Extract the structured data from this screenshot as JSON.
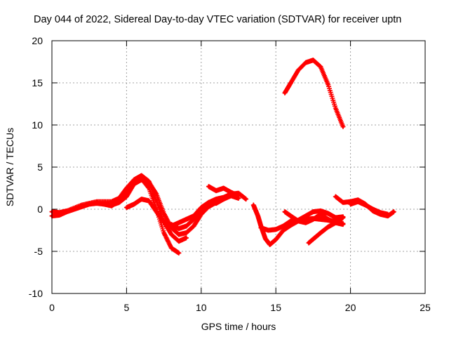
{
  "chart_data": {
    "type": "scatter",
    "title": "Day 044 of 2022, Sidereal Day-to-day VTEC variation (SDTVAR) for receiver uptn",
    "xlabel": "GPS time / hours",
    "ylabel": "SDTVAR / TECUs",
    "xlim": [
      0,
      25
    ],
    "ylim": [
      -10,
      20
    ],
    "xticks": [
      0,
      5,
      10,
      15,
      20,
      25
    ],
    "yticks": [
      -10,
      -5,
      0,
      5,
      10,
      15,
      20
    ],
    "xtick_labels": [
      "0",
      "5",
      "10",
      "15",
      "20",
      "25"
    ],
    "ytick_labels": [
      "-10",
      "-5",
      "0",
      "5",
      "10",
      "15",
      "20"
    ],
    "grid": true,
    "marker": "+",
    "color": "#ff0000",
    "series": [
      {
        "name": "track-1",
        "x": [
          0.0,
          0.5,
          1.0,
          1.5,
          2.0,
          2.5,
          3.0,
          3.5,
          4.0,
          4.5,
          5.0,
          5.5,
          6.0,
          6.5,
          7.0,
          7.5,
          8.0,
          8.5
        ],
        "y": [
          -0.8,
          -0.7,
          -0.3,
          0.0,
          0.3,
          0.6,
          0.7,
          0.6,
          0.5,
          0.8,
          1.5,
          3.0,
          3.6,
          2.5,
          0.0,
          -2.8,
          -4.6,
          -5.2
        ]
      },
      {
        "name": "track-2",
        "x": [
          0.0,
          0.5,
          1.0,
          2.0,
          3.0,
          4.0,
          4.5,
          5.0,
          5.5,
          6.0,
          6.5,
          7.0,
          7.5,
          8.0,
          8.5,
          9.0
        ],
        "y": [
          -0.3,
          -0.4,
          -0.2,
          0.5,
          0.9,
          0.9,
          1.3,
          2.5,
          3.5,
          4.0,
          3.3,
          1.0,
          -1.5,
          -3.0,
          -3.8,
          -3.4
        ]
      },
      {
        "name": "track-3",
        "x": [
          3.5,
          4.0,
          4.5,
          5.0,
          5.5,
          6.0,
          6.5,
          7.0,
          7.5,
          8.0,
          8.5,
          9.0,
          9.5,
          10.0,
          10.5,
          11.0
        ],
        "y": [
          0.6,
          0.4,
          1.0,
          2.0,
          3.0,
          3.5,
          3.2,
          1.8,
          -0.5,
          -2.2,
          -3.0,
          -2.8,
          -2.0,
          -0.6,
          0.3,
          0.8
        ]
      },
      {
        "name": "track-4",
        "x": [
          5.0,
          5.5,
          6.0,
          6.5,
          7.0,
          7.5,
          8.0,
          8.5,
          9.0,
          9.5,
          10.0,
          10.5,
          11.0,
          11.5,
          12.0,
          12.5
        ],
        "y": [
          0.2,
          0.6,
          1.2,
          1.0,
          -0.3,
          -1.5,
          -2.0,
          -1.6,
          -1.2,
          -0.8,
          0.2,
          0.8,
          0.7,
          1.2,
          1.6,
          1.3
        ]
      },
      {
        "name": "track-5",
        "x": [
          8.0,
          8.5,
          9.0,
          9.5,
          10.0,
          10.5,
          11.0,
          11.5,
          12.0,
          12.5,
          13.0
        ],
        "y": [
          -1.8,
          -2.3,
          -2.0,
          -1.2,
          0.0,
          0.8,
          1.2,
          1.4,
          1.8,
          1.9,
          1.2
        ]
      },
      {
        "name": "track-6",
        "x": [
          10.5,
          11.0,
          11.5,
          12.0,
          12.5
        ],
        "y": [
          2.7,
          2.2,
          2.5,
          2.0,
          1.6
        ]
      },
      {
        "name": "track-7",
        "x": [
          13.5,
          13.8,
          14.0,
          14.3,
          14.6,
          15.0,
          15.5,
          16.0,
          16.5,
          17.0,
          17.5,
          18.0,
          18.5,
          19.0,
          19.5
        ],
        "y": [
          0.5,
          -0.8,
          -2.0,
          -3.5,
          -4.2,
          -3.6,
          -2.5,
          -1.9,
          -1.4,
          -1.2,
          -1.1,
          -1.2,
          -1.3,
          -1.5,
          -1.7
        ]
      },
      {
        "name": "track-8",
        "x": [
          14.0,
          14.5,
          15.0,
          15.5,
          16.0,
          16.5,
          17.0,
          17.5,
          18.0,
          18.5,
          19.0,
          19.5
        ],
        "y": [
          -2.2,
          -2.5,
          -2.4,
          -2.0,
          -1.4,
          -1.3,
          -0.8,
          -0.3,
          -0.2,
          -0.5,
          -1.0,
          -0.9
        ]
      },
      {
        "name": "track-9",
        "x": [
          15.6,
          16.0,
          16.5,
          17.0,
          17.5,
          18.0,
          18.5,
          19.0,
          19.5
        ],
        "y": [
          -0.3,
          -0.8,
          -1.4,
          -1.6,
          -1.2,
          -0.6,
          -1.2,
          -1.6,
          -1.8
        ]
      },
      {
        "name": "track-10",
        "x": [
          17.2,
          17.6,
          18.0,
          18.5,
          19.0,
          19.5
        ],
        "y": [
          -4.0,
          -3.4,
          -2.8,
          -2.1,
          -1.6,
          -1.0
        ]
      },
      {
        "name": "track-11",
        "x": [
          19.0,
          19.5,
          20.0,
          20.5,
          21.0,
          21.5,
          22.0,
          22.5,
          22.9
        ],
        "y": [
          1.5,
          0.8,
          0.9,
          1.1,
          0.6,
          -0.2,
          -0.6,
          -0.8,
          -0.3
        ]
      },
      {
        "name": "track-12",
        "x": [
          20.0,
          20.5,
          21.0,
          21.5,
          22.0,
          22.5
        ],
        "y": [
          0.6,
          0.9,
          0.5,
          0.0,
          -0.4,
          -0.6
        ]
      },
      {
        "name": "track-13",
        "x": [
          15.6,
          16.0,
          16.5,
          17.0,
          17.5,
          18.0,
          18.5,
          19.0,
          19.5
        ],
        "y": [
          13.8,
          15.0,
          16.5,
          17.4,
          17.7,
          16.9,
          14.8,
          12.0,
          9.8
        ]
      }
    ]
  }
}
